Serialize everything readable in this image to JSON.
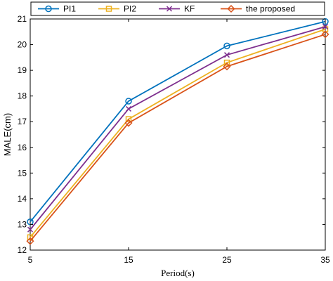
{
  "chart_data": {
    "type": "line",
    "title": "",
    "xlabel": "Period(s)",
    "ylabel": "MALE(cm)",
    "x": [
      5,
      15,
      25,
      35
    ],
    "xlim": [
      5,
      35
    ],
    "ylim": [
      12,
      21
    ],
    "xticks": [
      5,
      15,
      25,
      35
    ],
    "yticks": [
      12,
      13,
      14,
      15,
      16,
      17,
      18,
      19,
      20,
      21
    ],
    "grid": false,
    "legend_position": "top, horizontal",
    "series": [
      {
        "name": "PI1",
        "values": [
          13.1,
          17.8,
          19.95,
          20.9
        ],
        "color": "#0072BD",
        "marker": "circle"
      },
      {
        "name": "PI2",
        "values": [
          12.5,
          17.1,
          19.3,
          20.6
        ],
        "color": "#EDB120",
        "marker": "square"
      },
      {
        "name": "KF",
        "values": [
          12.8,
          17.5,
          19.6,
          20.7
        ],
        "color": "#7E2F8E",
        "marker": "x"
      },
      {
        "name": "the proposed",
        "values": [
          12.35,
          16.95,
          19.15,
          20.4
        ],
        "color": "#D95319",
        "marker": "diamond"
      }
    ]
  }
}
